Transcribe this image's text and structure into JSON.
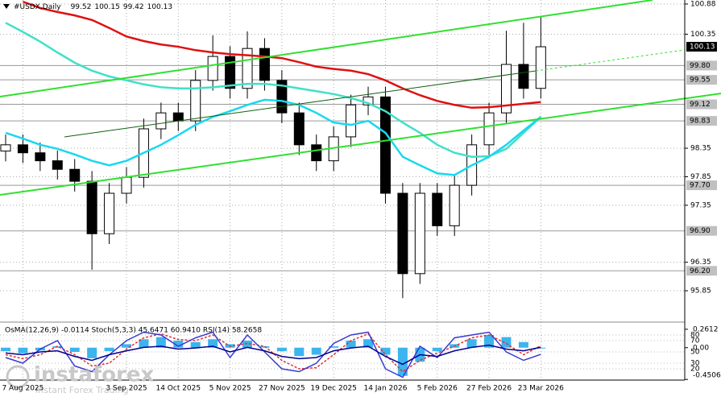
{
  "chart_data": [
    {
      "type": "candlestick",
      "title": "#USDX,Daily",
      "header_values": [
        99.52,
        100.15,
        99.42,
        100.13
      ],
      "categories": [
        null,
        "7 Aug 2025",
        null,
        null,
        null,
        null,
        null,
        "3 Sep 2025",
        null,
        null,
        "14 Oct 2025",
        null,
        null,
        "5 Nov 2025",
        null,
        null,
        "27 Nov 2025",
        null,
        null,
        "19 Dec 2025",
        null,
        null,
        "14 Jan 2026",
        null,
        null,
        "5 Feb 2026",
        null,
        null,
        "27 Feb 2026",
        null,
        null,
        "23 Mar 2026"
      ],
      "open": [
        98.3,
        98.41,
        98.27,
        98.13,
        97.98,
        97.77,
        96.85,
        97.56,
        97.84,
        98.69,
        98.97,
        98.83,
        99.54,
        99.96,
        99.4,
        100.1,
        99.54,
        98.97,
        98.41,
        98.13,
        98.55,
        99.11,
        99.25,
        97.56,
        96.15,
        97.56,
        96.99,
        97.7,
        98.41,
        98.97,
        99.82,
        99.4
      ],
      "high": [
        98.59,
        98.59,
        98.45,
        98.31,
        98.16,
        97.95,
        97.74,
        98.02,
        98.87,
        99.15,
        99.15,
        99.72,
        100.33,
        100.14,
        100.4,
        100.28,
        99.72,
        99.15,
        98.59,
        98.73,
        99.29,
        99.43,
        99.43,
        97.74,
        97.74,
        97.74,
        97.88,
        98.59,
        99.15,
        100.41,
        100.55,
        100.67
      ],
      "low": [
        98.12,
        98.09,
        97.95,
        97.8,
        97.59,
        96.22,
        96.67,
        97.38,
        97.66,
        98.51,
        98.65,
        98.65,
        99.36,
        99.22,
        99.22,
        99.36,
        98.79,
        98.23,
        97.95,
        97.95,
        98.37,
        98.93,
        97.38,
        95.72,
        95.97,
        96.81,
        96.81,
        97.52,
        98.23,
        98.79,
        99.22,
        99.22
      ],
      "close": [
        98.41,
        98.27,
        98.13,
        97.98,
        97.77,
        96.85,
        97.56,
        97.84,
        98.69,
        98.97,
        98.83,
        99.54,
        99.96,
        99.4,
        100.1,
        99.54,
        98.97,
        98.41,
        98.13,
        98.55,
        99.11,
        99.25,
        97.56,
        96.15,
        97.56,
        96.99,
        97.7,
        98.41,
        98.97,
        99.82,
        99.4,
        100.13
      ],
      "lines": [
        {
          "color": "#e01010",
          "values": [
            null,
            100.92,
            100.81,
            100.74,
            100.68,
            100.6,
            100.46,
            100.31,
            100.23,
            100.17,
            100.13,
            100.07,
            100.03,
            100.0,
            99.98,
            99.96,
            99.93,
            99.86,
            99.78,
            99.74,
            99.71,
            99.65,
            99.54,
            99.4,
            99.28,
            99.18,
            99.11,
            99.06,
            99.07,
            99.1,
            99.13,
            99.16
          ]
        },
        {
          "color": "#40e0c8",
          "values": [
            100.55,
            100.39,
            100.22,
            100.03,
            99.85,
            99.71,
            99.61,
            99.54,
            99.47,
            99.42,
            99.4,
            99.4,
            99.42,
            99.45,
            99.48,
            99.48,
            99.45,
            99.4,
            99.35,
            99.3,
            99.23,
            99.14,
            99.0,
            98.8,
            98.62,
            98.41,
            98.27,
            98.2,
            98.21,
            98.34,
            98.62,
            98.9
          ]
        },
        {
          "color": "#18d8f0",
          "values": [
            98.62,
            98.52,
            98.41,
            98.34,
            98.24,
            98.13,
            98.05,
            98.13,
            98.27,
            98.41,
            98.58,
            98.76,
            98.9,
            99.0,
            99.11,
            99.2,
            99.18,
            99.11,
            98.97,
            98.8,
            98.76,
            98.83,
            98.62,
            98.2,
            98.05,
            97.91,
            97.88,
            98.05,
            98.2,
            98.41,
            98.66,
            98.9
          ]
        }
      ],
      "ylim": [
        95.3,
        100.95
      ],
      "yticks": [
        100.88,
        100.35,
        98.35,
        97.85,
        97.35,
        96.35,
        95.85
      ],
      "levels": [
        {
          "value": 99.8,
          "label": "99.80"
        },
        99.55,
        99.12,
        98.83,
        {
          "value": 97.7,
          "label": "97.70"
        },
        {
          "value": 96.9,
          "label": "96.90"
        },
        {
          "value": 96.2,
          "label": "96.20"
        }
      ],
      "last_price": 100.13,
      "grid": true
    },
    {
      "type": "oscillator",
      "title": "OsMA(12,26,9) -0.0114  Stoch(5,3,3) 45.6471 60.9410  RSI(14) 58.2658",
      "histogram": {
        "color": "#3cb4ee",
        "axis": "y2",
        "values": [
          -0.05,
          -0.08,
          -0.04,
          0.02,
          -0.06,
          -0.15,
          -0.05,
          0.05,
          0.12,
          0.15,
          0.1,
          0.08,
          0.12,
          0.05,
          0.1,
          0.02,
          -0.05,
          -0.12,
          -0.1,
          0.02,
          0.1,
          0.12,
          -0.1,
          -0.4,
          -0.2,
          -0.05,
          0.05,
          0.12,
          0.18,
          0.15,
          0.08,
          -0.0114
        ]
      },
      "series": [
        {
          "color": "#e03030",
          "dash": true,
          "values": [
            45,
            38,
            45,
            60,
            45,
            25,
            30,
            55,
            75,
            82,
            72,
            70,
            80,
            60,
            65,
            60,
            35,
            20,
            22,
            45,
            70,
            82,
            45,
            15,
            35,
            48,
            60,
            75,
            80,
            65,
            45,
            60.941
          ]
        },
        {
          "color": "#3a3ad0",
          "dash": false,
          "values": [
            40,
            30,
            55,
            70,
            25,
            15,
            45,
            70,
            85,
            80,
            60,
            75,
            85,
            40,
            80,
            50,
            20,
            15,
            30,
            65,
            80,
            85,
            20,
            5,
            60,
            40,
            75,
            80,
            85,
            50,
            35,
            45.6471
          ]
        },
        {
          "color": "#000090",
          "dash": false,
          "values": [
            48,
            45,
            50,
            52,
            42,
            35,
            45,
            52,
            58,
            60,
            55,
            57,
            60,
            50,
            58,
            52,
            42,
            38,
            40,
            52,
            57,
            60,
            42,
            28,
            45,
            42,
            52,
            58,
            62,
            55,
            52,
            58.2658
          ]
        }
      ],
      "ylim": [
        0,
        100
      ],
      "yticks": [
        80,
        70,
        50,
        30,
        20
      ],
      "y2lim": [
        -0.46,
        0.34
      ],
      "y2ticks": [
        0.2612,
        {
          "value": 0,
          "label": "0.00"
        },
        -0.4506
      ]
    }
  ],
  "logo": {
    "name": "instaforex",
    "tagline": "Instant Forex Trading"
  }
}
